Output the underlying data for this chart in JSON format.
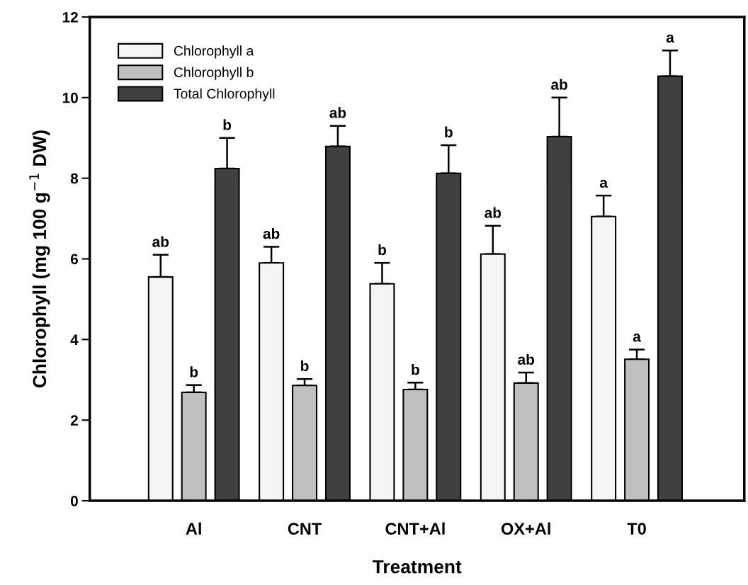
{
  "chart_data": {
    "type": "bar",
    "xlabel": "Treatment",
    "ylabel": "Chlorophyll (mg 100 g$^{−1}$ DW)",
    "categories": [
      "Al",
      "CNT",
      "CNT+Al",
      "OX+Al",
      "T0"
    ],
    "series": [
      {
        "name": "Chlorophyll a",
        "color": "#f5f5f5",
        "values": [
          5.55,
          5.9,
          5.38,
          6.12,
          7.05
        ],
        "errors": [
          [
            5.55,
            6.1
          ],
          [
            5.9,
            6.3
          ],
          [
            5.38,
            5.9
          ],
          [
            6.12,
            6.82
          ],
          [
            7.05,
            7.57
          ]
        ],
        "value_labels": [
          "ab",
          "ab",
          "b",
          "ab",
          "a"
        ]
      },
      {
        "name": "Chlorophyll b",
        "color": "#c0c0c0",
        "values": [
          2.69,
          2.86,
          2.76,
          2.92,
          3.51
        ],
        "errors": [
          [
            2.69,
            2.87
          ],
          [
            2.86,
            3.02
          ],
          [
            2.76,
            2.93
          ],
          [
            2.92,
            3.18
          ],
          [
            3.51,
            3.75
          ]
        ],
        "value_labels": [
          "b",
          "b",
          "b",
          "ab",
          "a"
        ]
      },
      {
        "name": "Total Chlorophyll",
        "color": "#404040",
        "values": [
          8.24,
          8.79,
          8.12,
          9.03,
          10.53
        ],
        "errors": [
          [
            8.24,
            9.0
          ],
          [
            8.79,
            9.3
          ],
          [
            8.12,
            8.82
          ],
          [
            9.03,
            10.0
          ],
          [
            10.53,
            11.17
          ]
        ],
        "value_labels": [
          "b",
          "ab",
          "b",
          "ab",
          "a"
        ]
      }
    ],
    "ylim": [
      0,
      12
    ],
    "yticks": [
      0,
      2,
      4,
      6,
      8,
      10,
      12
    ],
    "grid": false,
    "legend": "top left"
  }
}
